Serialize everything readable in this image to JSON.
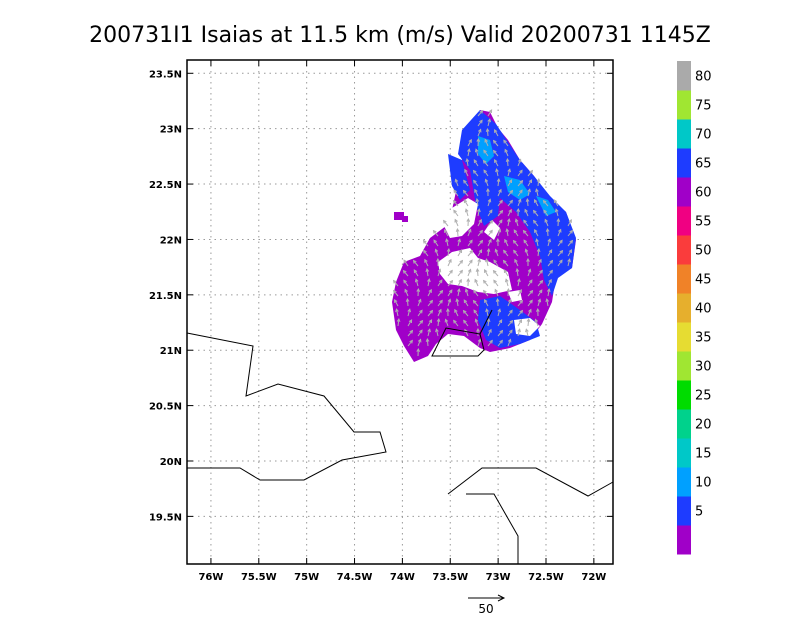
{
  "title": "200731I1 Isaias at 11.5 km (m/s) Valid 20200731 1145Z",
  "map": {
    "lat_ticks": [
      "23.5N",
      "23N",
      "22.5N",
      "22N",
      "21.5N",
      "21N",
      "20.5N",
      "20N",
      "19.5N"
    ],
    "lon_ticks": [
      "76W",
      "75.5W",
      "75W",
      "74.5W",
      "74W",
      "73.5W",
      "73W",
      "72.5W",
      "72W"
    ],
    "lat_values": [
      23.5,
      23.0,
      22.5,
      22.0,
      21.5,
      21.0,
      20.5,
      20.0,
      19.5
    ],
    "lon_values": [
      -76.0,
      -75.5,
      -75.0,
      -74.5,
      -74.0,
      -73.5,
      -73.0,
      -72.5,
      -72.0
    ],
    "lat_range": [
      19.07,
      23.62
    ],
    "lon_range": [
      -76.25,
      -71.8
    ],
    "grid": true
  },
  "colorbar": {
    "labels": [
      "5",
      "10",
      "15",
      "20",
      "25",
      "30",
      "35",
      "40",
      "45",
      "50",
      "55",
      "60",
      "65",
      "70",
      "75",
      "80"
    ],
    "colors": [
      "#a000c8",
      "#1e3cff",
      "#00a0ff",
      "#00c8c8",
      "#00d28c",
      "#00dc00",
      "#a0e632",
      "#e6dc32",
      "#e6af2d",
      "#f08228",
      "#fa3c3c",
      "#f00082",
      "#a000c8",
      "#1e3cff",
      "#00c8c8",
      "#a0e632",
      "#aaaaaa"
    ]
  },
  "reference_vector": {
    "label": "50"
  }
}
